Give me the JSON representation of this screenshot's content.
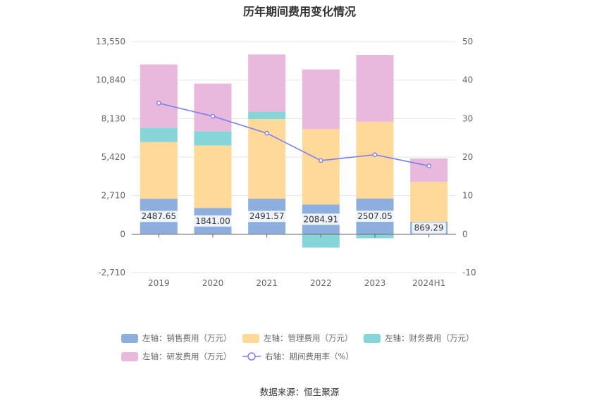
{
  "title": "历年期间费用变化情况",
  "source": "数据来源：恒生聚源",
  "chart_data": {
    "type": "bar",
    "stacked": true,
    "categories": [
      "2019",
      "2020",
      "2021",
      "2022",
      "2023",
      "2024H1"
    ],
    "left_axis": {
      "ticks": [
        "13,550",
        "10,840",
        "8,130",
        "5,420",
        "2,710",
        "0",
        "-2,710"
      ],
      "ylim": [
        -2710,
        13550
      ]
    },
    "right_axis": {
      "ticks": [
        "50",
        "40",
        "30",
        "20",
        "10",
        "0",
        "-10"
      ],
      "ylim": [
        -10,
        50
      ]
    },
    "series": [
      {
        "name": "左轴：销售费用（万元）",
        "axis": "left",
        "color": "#8eaede",
        "values": [
          2487.65,
          1841.0,
          2491.57,
          2084.91,
          2507.05,
          869.29
        ],
        "labels": [
          "2487.65",
          "1841.00",
          "2491.57",
          "2084.91",
          "2507.05",
          "869.29"
        ]
      },
      {
        "name": "左轴：管理费用（万元）",
        "axis": "left",
        "color": "#ffd99a",
        "values": [
          4000,
          4400,
          5600,
          5300,
          5400,
          2800
        ]
      },
      {
        "name": "左轴：财务费用（万元）",
        "axis": "left",
        "color": "#86d6d9",
        "values": [
          1000,
          1000,
          530,
          -950,
          -300,
          0
        ]
      },
      {
        "name": "左轴：研发费用（万元）",
        "axis": "left",
        "color": "#e8b9dc",
        "values": [
          4450,
          3350,
          4020,
          4200,
          4700,
          1650
        ]
      },
      {
        "name": "右轴：期间费用率（%）",
        "axis": "right",
        "type": "line",
        "color": "#7b7ff0",
        "values": [
          34.0,
          30.6,
          26.2,
          19.1,
          20.6,
          17.7
        ]
      }
    ],
    "legend_position": "bottom",
    "grid": true
  }
}
